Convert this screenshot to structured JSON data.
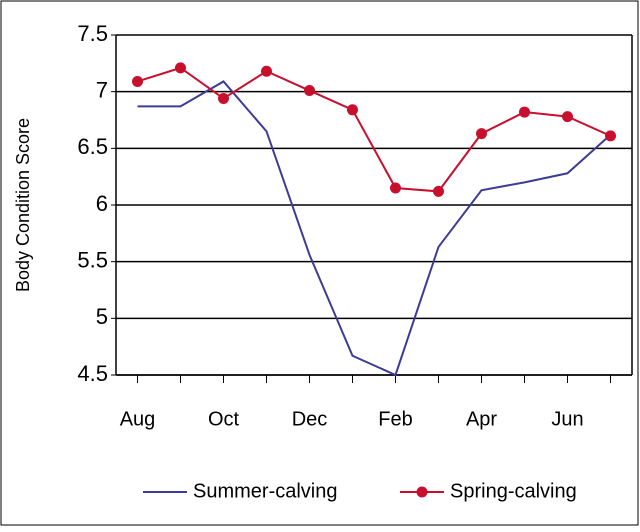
{
  "chart_data": {
    "type": "line",
    "y_label": "Body Condition Score",
    "categories": [
      "Aug",
      null,
      "Oct",
      null,
      "Dec",
      null,
      "Feb",
      null,
      "Apr",
      null,
      "Jun",
      null
    ],
    "series": [
      {
        "name": "Summer-calving",
        "color": "#3c3c96",
        "marker": false,
        "values": [
          6.87,
          6.87,
          7.09,
          6.65,
          5.56,
          4.67,
          4.5,
          5.63,
          6.13,
          6.2,
          6.28,
          6.62
        ]
      },
      {
        "name": "Spring-calving",
        "color": "#c8102e",
        "marker": true,
        "values": [
          7.09,
          7.21,
          6.94,
          7.18,
          7.01,
          6.84,
          6.15,
          6.12,
          6.63,
          6.82,
          6.78,
          6.61
        ]
      }
    ],
    "ylim": [
      4.5,
      7.5
    ],
    "yticks": [
      4.5,
      5,
      5.5,
      6,
      6.5,
      7,
      7.5
    ],
    "grid": true,
    "legend": "bottom"
  }
}
